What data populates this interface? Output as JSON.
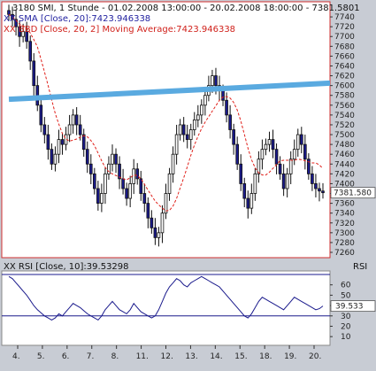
{
  "header": {
    "title_line": "3180   SMI, 1 Stunde - 01.02.2008 13:00:00 - 20.02.2008 18:00:00 - 7381.5801",
    "sma_label": "XX SMA [Close, 20]:7423.946338",
    "bbd_label": "XX BBD [Close, 20, 2] Moving Average:7423.946338"
  },
  "price_panel": {
    "last_price_label": "7381.580",
    "trendline_color": "#5aaae0",
    "candle_up_color": "#1a1a8c",
    "candle_down_color": "#1a1a8c",
    "ma_color": "#e0201a"
  },
  "rsi_panel": {
    "label": "XX RSI [Close, 10]:39.53298",
    "axis_title": "RSI",
    "current_label": "39.533",
    "line_color": "#1a1a8c"
  },
  "chart_data": [
    {
      "type": "candlestick",
      "title": "SMI, 1 Stunde - 01.02.2008 13:00:00 - 20.02.2008 18:00:00 - 7381.5801",
      "ylim": [
        7260,
        7760
      ],
      "yticks": [
        7260,
        7280,
        7300,
        7320,
        7340,
        7360,
        7380,
        7400,
        7420,
        7440,
        7460,
        7480,
        7500,
        7520,
        7540,
        7560,
        7580,
        7600,
        7620,
        7640,
        7660,
        7680,
        7700,
        7720,
        7740
      ],
      "xticks": [
        "4.",
        "5.",
        "6.",
        "7.",
        "8.",
        "11.",
        "12.",
        "13.",
        "14.",
        "15.",
        "18.",
        "19.",
        "20."
      ],
      "close": [
        7745,
        7735,
        7720,
        7700,
        7710,
        7690,
        7650,
        7600,
        7560,
        7520,
        7500,
        7470,
        7440,
        7460,
        7490,
        7480,
        7500,
        7520,
        7540,
        7520,
        7500,
        7470,
        7440,
        7420,
        7390,
        7360,
        7380,
        7420,
        7440,
        7460,
        7440,
        7410,
        7390,
        7370,
        7400,
        7430,
        7410,
        7380,
        7360,
        7330,
        7310,
        7290,
        7300,
        7340,
        7380,
        7420,
        7460,
        7500,
        7520,
        7500,
        7490,
        7510,
        7530,
        7540,
        7560,
        7580,
        7600,
        7620,
        7600,
        7590,
        7570,
        7540,
        7510,
        7480,
        7440,
        7400,
        7370,
        7350,
        7380,
        7420,
        7450,
        7470,
        7480,
        7490,
        7470,
        7440,
        7420,
        7390,
        7420,
        7450,
        7470,
        7500,
        7480,
        7450,
        7420,
        7400,
        7390,
        7385,
        7381.58
      ],
      "sma": {
        "name": "XX SMA [Close, 20]",
        "last": 7423.946338
      },
      "trendline": {
        "from": [
          0,
          7572
        ],
        "to": [
          88,
          7605
        ]
      },
      "last_value": 7381.58
    },
    {
      "type": "line",
      "title": "XX RSI [Close, 10]",
      "ylim": [
        5,
        70
      ],
      "yticks": [
        10,
        20,
        30,
        40,
        50,
        60
      ],
      "levels": [
        30,
        70
      ],
      "values": [
        68,
        66,
        62,
        58,
        54,
        50,
        45,
        40,
        36,
        33,
        30,
        28,
        26,
        28,
        32,
        30,
        34,
        38,
        42,
        40,
        38,
        35,
        32,
        30,
        28,
        26,
        30,
        36,
        40,
        44,
        40,
        36,
        34,
        32,
        36,
        42,
        38,
        34,
        32,
        30,
        28,
        30,
        36,
        44,
        52,
        58,
        62,
        66,
        64,
        60,
        58,
        62,
        64,
        66,
        68,
        66,
        64,
        62,
        60,
        58,
        54,
        50,
        46,
        42,
        38,
        34,
        30,
        28,
        32,
        38,
        44,
        48,
        46,
        44,
        42,
        40,
        38,
        36,
        40,
        44,
        48,
        46,
        44,
        42,
        40,
        38,
        36,
        37,
        39.53298
      ],
      "last_value": 39.53298
    }
  ]
}
